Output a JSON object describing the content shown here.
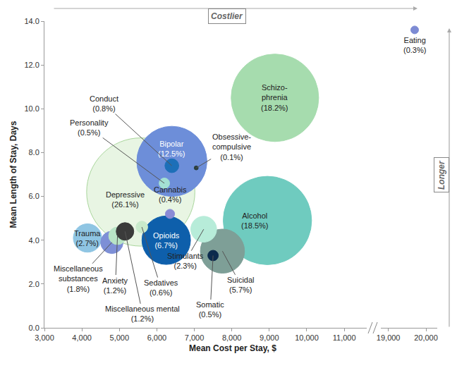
{
  "chart_data": {
    "type": "scatter",
    "marker": "bubble",
    "x_label": "Mean Cost per Stay, $",
    "y_label": "Mean Length of Stay, Days",
    "x_arrow_label": "Costlier",
    "y_arrow_label": "Longer",
    "xlim": [
      3000,
      20300
    ],
    "xbreak": [
      11600,
      18800
    ],
    "xticks": [
      {
        "value": 3000,
        "label": "3,000"
      },
      {
        "value": 4000,
        "label": "4,000"
      },
      {
        "value": 5000,
        "label": "5,000"
      },
      {
        "value": 6000,
        "label": "6,000"
      },
      {
        "value": 7000,
        "label": "7,000"
      },
      {
        "value": 8000,
        "label": "8,000"
      },
      {
        "value": 9000,
        "label": "9,000"
      },
      {
        "value": 10000,
        "label": "10,000"
      },
      {
        "value": 11000,
        "label": "11,000"
      },
      {
        "value": 19000,
        "label": "19,000"
      },
      {
        "value": 20000,
        "label": "20,000"
      }
    ],
    "ylim": [
      0,
      14
    ],
    "yticks": [
      {
        "value": 0,
        "label": "0.0"
      },
      {
        "value": 2,
        "label": "2.0"
      },
      {
        "value": 4,
        "label": "4.0"
      },
      {
        "value": 6,
        "label": "6.0"
      },
      {
        "value": 8,
        "label": "8.0"
      },
      {
        "value": 10,
        "label": "10.0"
      },
      {
        "value": 12,
        "label": "12.0"
      },
      {
        "value": 14,
        "label": "14.0"
      }
    ],
    "grid": false,
    "data_labels": true,
    "points": [
      {
        "name": "Depressive",
        "x": 5570,
        "y": 6.2,
        "size": 26.1,
        "size_label": "(26.1%)",
        "color": "#e8f5e3"
      },
      {
        "name": "Alcohol",
        "x": 8950,
        "y": 4.9,
        "size": 18.5,
        "size_label": "(18.5%)",
        "color": "#6fcbbf"
      },
      {
        "name": "Schizo-\nphrenia",
        "x": 9150,
        "y": 10.5,
        "size": 18.2,
        "size_label": "(18.2%)",
        "color": "#a6dcae"
      },
      {
        "name": "Bipolar",
        "x": 6400,
        "y": 7.6,
        "size": 12.5,
        "size_label": "(12.5%)",
        "color": "#6d8ed9"
      },
      {
        "name": "Opioids",
        "x": 6250,
        "y": 4.0,
        "size": 6.7,
        "size_label": "(6.7%)",
        "color": "#0e5fab"
      },
      {
        "name": "Suicidal",
        "x": 7750,
        "y": 3.5,
        "size": 5.7,
        "size_label": "(5.7%)",
        "color": "#7e9f97"
      },
      {
        "name": "Trauma",
        "x": 4150,
        "y": 4.1,
        "size": 2.7,
        "size_label": "(2.7%)",
        "color": "#8fc5e3"
      },
      {
        "name": "Stimulants",
        "x": 7250,
        "y": 4.5,
        "size": 2.3,
        "size_label": "(2.3%)",
        "color": "#b7ecd9"
      },
      {
        "name": "Miscellaneous\nsubstances",
        "x": 4800,
        "y": 3.9,
        "size": 1.8,
        "size_label": "(1.8%)",
        "color": "#7d8fd6"
      },
      {
        "name": "Anxiety",
        "x": 4950,
        "y": 4.2,
        "size": 1.2,
        "size_label": "(1.2%)",
        "color": "#b8e4c6"
      },
      {
        "name": "Miscellaneous mental",
        "x": 5150,
        "y": 4.4,
        "size": 1.2,
        "size_label": "(1.2%)",
        "color": "#3b3b3b"
      },
      {
        "name": "Sedatives",
        "x": 5600,
        "y": 4.6,
        "size": 0.6,
        "size_label": "(0.6%)",
        "color": "#c8eacb"
      },
      {
        "name": "Conduct",
        "x": 6400,
        "y": 7.4,
        "size": 0.8,
        "size_label": "(0.8%)",
        "color": "#1d6fb8"
      },
      {
        "name": "Personality",
        "x": 6200,
        "y": 6.6,
        "size": 0.5,
        "size_label": "(0.5%)",
        "color": "#a3e0d3"
      },
      {
        "name": "Cannabis",
        "x": 6350,
        "y": 5.2,
        "size": 0.4,
        "size_label": "(0.4%)",
        "color": "#8a8bd6"
      },
      {
        "name": "Somatic",
        "x": 7500,
        "y": 3.3,
        "size": 0.5,
        "size_label": "(0.5%)",
        "color": "#0c2b4d"
      },
      {
        "name": "Obsessive-\ncompulsive",
        "x": 7050,
        "y": 7.3,
        "size": 0.1,
        "size_label": "(0.1%)",
        "color": "#2b3f3f"
      },
      {
        "name": "Eating",
        "x": 19700,
        "y": 13.6,
        "size": 0.3,
        "size_label": "(0.3%)",
        "color": "#7d8bd4"
      }
    ]
  }
}
